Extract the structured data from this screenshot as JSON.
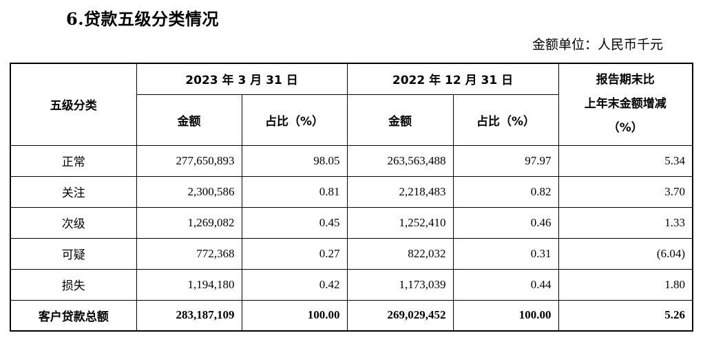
{
  "title": "6.贷款五级分类情况",
  "unit_label": "金额单位：人民币千元",
  "table": {
    "col_category": "五级分类",
    "period1": "2023 年 3 月 31 日",
    "period2": "2022 年 12 月 31 日",
    "change_header_line1": "报告期末比",
    "change_header_line2": "上年末金额增减",
    "change_header_line3": "（%）",
    "amount_label": "金额",
    "ratio_label": "占比（%）",
    "rows": [
      {
        "category": "正常",
        "amt1": "277,650,893",
        "pct1": "98.05",
        "amt2": "263,563,488",
        "pct2": "97.97",
        "change": "5.34"
      },
      {
        "category": "关注",
        "amt1": "2,300,586",
        "pct1": "0.81",
        "amt2": "2,218,483",
        "pct2": "0.82",
        "change": "3.70"
      },
      {
        "category": "次级",
        "amt1": "1,269,082",
        "pct1": "0.45",
        "amt2": "1,252,410",
        "pct2": "0.46",
        "change": "1.33"
      },
      {
        "category": "可疑",
        "amt1": "772,368",
        "pct1": "0.27",
        "amt2": "822,032",
        "pct2": "0.31",
        "change": "(6.04)"
      },
      {
        "category": "损失",
        "amt1": "1,194,180",
        "pct1": "0.42",
        "amt2": "1,173,039",
        "pct2": "0.44",
        "change": "1.80"
      }
    ],
    "total": {
      "category": "客户贷款总额",
      "amt1": "283,187,109",
      "pct1": "100.00",
      "amt2": "269,029,452",
      "pct2": "100.00",
      "change": "5.26"
    }
  }
}
